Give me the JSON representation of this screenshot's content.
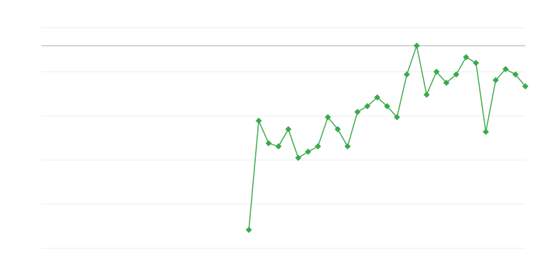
{
  "chart_data": {
    "type": "line",
    "color": "#3aaa4a",
    "grid": true,
    "max_line": true,
    "ylim": [
      0,
      5
    ],
    "yticks": [
      0,
      1,
      2,
      3,
      4,
      5
    ],
    "values": [
      null,
      null,
      null,
      null,
      null,
      null,
      null,
      null,
      null,
      null,
      null,
      null,
      null,
      null,
      null,
      null,
      null,
      null,
      null,
      null,
      null,
      0.42,
      2.89,
      2.38,
      2.31,
      2.7,
      2.05,
      2.19,
      2.31,
      2.97,
      2.7,
      2.31,
      3.09,
      3.22,
      3.42,
      3.22,
      2.97,
      3.94,
      4.59,
      3.48,
      4.0,
      3.75,
      3.94,
      4.33,
      4.2,
      2.64,
      3.81,
      4.06,
      3.94,
      3.67
    ]
  }
}
